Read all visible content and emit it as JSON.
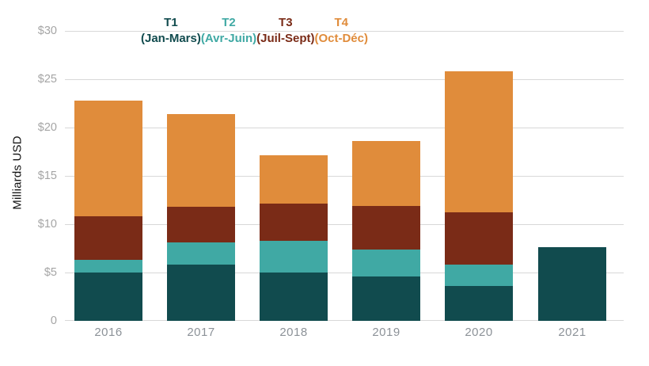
{
  "chart_data": {
    "type": "bar",
    "stacked": true,
    "title": "",
    "xlabel": "",
    "ylabel": "Milliards USD",
    "categories": [
      "2016",
      "2017",
      "2018",
      "2019",
      "2020",
      "2021"
    ],
    "series": [
      {
        "name": "T1",
        "sublabel": "(Jan-Mars)",
        "color": "#114B4E",
        "values": [
          5.0,
          5.8,
          5.0,
          4.6,
          3.6,
          7.6
        ]
      },
      {
        "name": "T2",
        "sublabel": "(Avr-Juin)",
        "color": "#40A9A4",
        "values": [
          1.3,
          2.3,
          3.3,
          2.8,
          2.2,
          0
        ]
      },
      {
        "name": "T3",
        "sublabel": "(Juil-Sept)",
        "color": "#7A2B17",
        "values": [
          4.5,
          3.7,
          3.8,
          4.5,
          5.4,
          0
        ]
      },
      {
        "name": "T4",
        "sublabel": "(Oct-Déc)",
        "color": "#E08C3B",
        "values": [
          12.0,
          9.6,
          5.0,
          6.7,
          14.6,
          0
        ]
      }
    ],
    "totals": [
      22.8,
      21.4,
      17.1,
      18.6,
      25.8,
      7.6
    ],
    "ylim": [
      0,
      30
    ],
    "ytick_step": 5,
    "ytick_labels": [
      "0",
      "$5",
      "$10",
      "$15",
      "$20",
      "$25",
      "$30"
    ],
    "grid": true,
    "legend_position": "top-center",
    "colors": {
      "grid": "#d8d8d8",
      "y_tick_text": "#a5a5a5",
      "x_tick_text": "#8c9298",
      "axis_title_text": "#111111"
    }
  }
}
